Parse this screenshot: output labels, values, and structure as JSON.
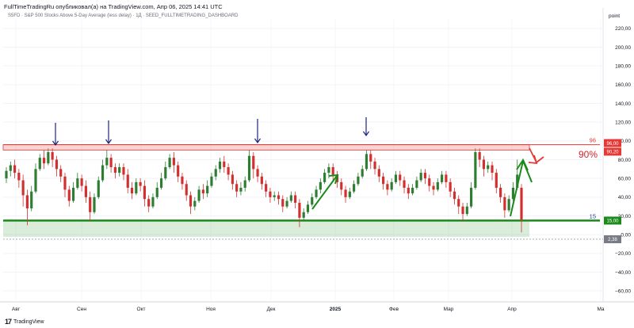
{
  "header": {
    "publisher": "FullTimeTradingRu опубликовал(а) на TradingView.com, Апр 06, 2025 14:41 UTC",
    "symbol_line": "S5FD · S&P 500 Stocks Above 5-Day Average (less delay) · 1Д · SEED_FULLTIMETRADING_DASHBOARD"
  },
  "footer": {
    "logo": "17",
    "brand": "TradingView"
  },
  "colors": {
    "resistance": "#e53935",
    "support": "#1b8a1b",
    "up_candle": "#2e7d32",
    "down_candle": "#d32f2f",
    "arrow_blue": "#1a237e"
  },
  "chart_data": {
    "type": "candlestick",
    "y_axis_title": "point",
    "ylim": [
      -70,
      230
    ],
    "yticks": [
      "220,00",
      "200,00",
      "180,00",
      "160,00",
      "140,00",
      "120,00",
      "100,00",
      "80,00",
      "60,00",
      "40,00",
      "20,00",
      "0,00",
      "−20,00",
      "−40,00",
      "−60,00"
    ],
    "ytick_values": [
      220,
      200,
      180,
      160,
      140,
      120,
      100,
      80,
      60,
      40,
      20,
      0,
      -20,
      -40,
      -60
    ],
    "x_axis_labels": [
      "Авг",
      "Сен",
      "Окт",
      "Ноя",
      "Дек",
      "2025",
      "Фев",
      "Мар",
      "Апр",
      "Ма"
    ],
    "resistance": {
      "label": "96",
      "badge_upper": "96,00",
      "badge_lower": "90,20",
      "band": [
        90.2,
        96
      ]
    },
    "support": {
      "label": "15",
      "badge": "15,00",
      "band": [
        -2.38,
        15
      ]
    },
    "last_value_badge": "2,38",
    "annotation": "90%",
    "candles": [
      [
        60,
        68,
        55,
        72,
        52
      ],
      [
        68,
        74,
        62,
        78,
        60
      ],
      [
        74,
        66,
        60,
        80,
        58
      ],
      [
        66,
        58,
        50,
        70,
        40
      ],
      [
        58,
        42,
        30,
        64,
        20
      ],
      [
        42,
        28,
        10,
        48,
        5
      ],
      [
        28,
        46,
        25,
        52,
        20
      ],
      [
        46,
        70,
        44,
        76,
        40
      ],
      [
        70,
        82,
        68,
        86,
        64
      ],
      [
        82,
        76,
        70,
        90,
        66
      ],
      [
        76,
        88,
        74,
        92,
        70
      ],
      [
        88,
        80,
        72,
        92,
        66
      ],
      [
        80,
        70,
        62,
        84,
        58
      ],
      [
        70,
        62,
        56,
        74,
        50
      ],
      [
        62,
        48,
        40,
        66,
        30
      ],
      [
        48,
        36,
        30,
        52,
        22
      ],
      [
        36,
        50,
        34,
        56,
        28
      ],
      [
        50,
        60,
        48,
        66,
        44
      ],
      [
        60,
        52,
        46,
        64,
        40
      ],
      [
        52,
        40,
        34,
        58,
        20
      ],
      [
        40,
        24,
        14,
        46,
        10
      ],
      [
        24,
        40,
        22,
        44,
        16
      ],
      [
        40,
        58,
        38,
        62,
        34
      ],
      [
        58,
        74,
        56,
        80,
        52
      ],
      [
        74,
        82,
        70,
        90,
        66
      ],
      [
        82,
        72,
        66,
        86,
        60
      ],
      [
        72,
        66,
        60,
        76,
        56
      ],
      [
        66,
        72,
        62,
        76,
        58
      ],
      [
        72,
        64,
        58,
        76,
        54
      ],
      [
        64,
        50,
        44,
        70,
        40
      ],
      [
        50,
        44,
        38,
        56,
        32
      ],
      [
        44,
        56,
        42,
        60,
        38
      ],
      [
        56,
        52,
        46,
        60,
        40
      ],
      [
        52,
        38,
        30,
        58,
        24
      ],
      [
        38,
        30,
        24,
        42,
        16
      ],
      [
        30,
        40,
        28,
        44,
        22
      ],
      [
        40,
        50,
        38,
        56,
        34
      ],
      [
        50,
        60,
        48,
        66,
        44
      ],
      [
        60,
        72,
        58,
        78,
        54
      ],
      [
        72,
        82,
        70,
        86,
        66
      ],
      [
        82,
        74,
        66,
        88,
        62
      ],
      [
        74,
        62,
        56,
        78,
        50
      ],
      [
        62,
        54,
        48,
        66,
        42
      ],
      [
        54,
        42,
        36,
        58,
        30
      ],
      [
        42,
        30,
        22,
        46,
        16
      ],
      [
        30,
        36,
        26,
        40,
        20
      ],
      [
        36,
        48,
        34,
        52,
        30
      ],
      [
        48,
        44,
        38,
        54,
        34
      ],
      [
        44,
        52,
        40,
        58,
        36
      ],
      [
        52,
        62,
        50,
        66,
        46
      ],
      [
        62,
        70,
        58,
        74,
        54
      ],
      [
        70,
        78,
        66,
        82,
        62
      ],
      [
        78,
        72,
        66,
        84,
        62
      ],
      [
        72,
        64,
        58,
        76,
        54
      ],
      [
        64,
        54,
        48,
        68,
        44
      ],
      [
        54,
        46,
        40,
        58,
        34
      ],
      [
        46,
        50,
        42,
        56,
        38
      ],
      [
        50,
        58,
        46,
        62,
        42
      ],
      [
        58,
        84,
        56,
        90,
        50
      ],
      [
        84,
        70,
        60,
        88,
        58
      ],
      [
        70,
        62,
        56,
        74,
        50
      ],
      [
        62,
        54,
        48,
        66,
        42
      ],
      [
        54,
        46,
        40,
        58,
        34
      ],
      [
        46,
        40,
        34,
        50,
        30
      ],
      [
        40,
        42,
        36,
        46,
        32
      ],
      [
        42,
        38,
        32,
        46,
        28
      ],
      [
        38,
        30,
        24,
        42,
        20
      ],
      [
        30,
        36,
        28,
        40,
        24
      ],
      [
        36,
        42,
        34,
        46,
        30
      ],
      [
        42,
        34,
        28,
        46,
        20
      ],
      [
        34,
        18,
        8,
        38,
        -4
      ],
      [
        18,
        24,
        14,
        28,
        6
      ],
      [
        24,
        32,
        22,
        36,
        16
      ],
      [
        32,
        40,
        30,
        44,
        26
      ],
      [
        40,
        48,
        38,
        52,
        34
      ],
      [
        48,
        56,
        44,
        60,
        40
      ],
      [
        56,
        66,
        54,
        70,
        50
      ],
      [
        66,
        72,
        60,
        76,
        56
      ],
      [
        72,
        64,
        56,
        76,
        50
      ],
      [
        64,
        56,
        50,
        68,
        46
      ],
      [
        56,
        48,
        42,
        60,
        36
      ],
      [
        48,
        40,
        34,
        52,
        28
      ],
      [
        40,
        46,
        38,
        50,
        32
      ],
      [
        46,
        54,
        44,
        58,
        40
      ],
      [
        54,
        62,
        52,
        66,
        48
      ],
      [
        62,
        70,
        60,
        74,
        56
      ],
      [
        70,
        86,
        68,
        90,
        64
      ],
      [
        86,
        78,
        70,
        90,
        66
      ],
      [
        78,
        70,
        64,
        82,
        58
      ],
      [
        70,
        62,
        56,
        74,
        52
      ],
      [
        62,
        54,
        48,
        66,
        44
      ],
      [
        54,
        48,
        42,
        58,
        38
      ],
      [
        48,
        56,
        46,
        60,
        42
      ],
      [
        56,
        64,
        54,
        68,
        50
      ],
      [
        64,
        58,
        52,
        68,
        48
      ],
      [
        58,
        50,
        44,
        62,
        40
      ],
      [
        50,
        44,
        38,
        54,
        34
      ],
      [
        44,
        50,
        42,
        54,
        38
      ],
      [
        50,
        58,
        48,
        62,
        44
      ],
      [
        58,
        66,
        56,
        70,
        52
      ],
      [
        66,
        60,
        54,
        70,
        50
      ],
      [
        60,
        52,
        46,
        64,
        42
      ],
      [
        52,
        48,
        42,
        56,
        38
      ],
      [
        48,
        56,
        46,
        60,
        42
      ],
      [
        56,
        64,
        54,
        68,
        50
      ],
      [
        64,
        56,
        50,
        68,
        46
      ],
      [
        56,
        46,
        40,
        60,
        34
      ],
      [
        46,
        38,
        32,
        50,
        26
      ],
      [
        38,
        30,
        22,
        42,
        14
      ],
      [
        30,
        22,
        14,
        34,
        8
      ],
      [
        22,
        30,
        20,
        34,
        14
      ],
      [
        30,
        50,
        28,
        56,
        24
      ],
      [
        50,
        88,
        48,
        92,
        46
      ],
      [
        88,
        80,
        72,
        92,
        68
      ],
      [
        80,
        70,
        62,
        84,
        58
      ],
      [
        70,
        74,
        66,
        78,
        62
      ],
      [
        74,
        66,
        58,
        78,
        54
      ],
      [
        66,
        50,
        44,
        70,
        38
      ],
      [
        50,
        40,
        34,
        54,
        28
      ],
      [
        40,
        26,
        18,
        44,
        12
      ],
      [
        26,
        38,
        24,
        42,
        20
      ],
      [
        38,
        50,
        36,
        56,
        32
      ],
      [
        50,
        64,
        48,
        80,
        44
      ]
    ],
    "last_candle": [
      50,
      16,
      2.38,
      54,
      -2.38
    ]
  },
  "arrows": {
    "blue": [
      "down-arrow",
      "down-arrow",
      "down-arrow",
      "down-arrow"
    ],
    "green": [
      "up-arrow",
      "up-arrow"
    ],
    "red": [
      "down-arrow"
    ]
  }
}
